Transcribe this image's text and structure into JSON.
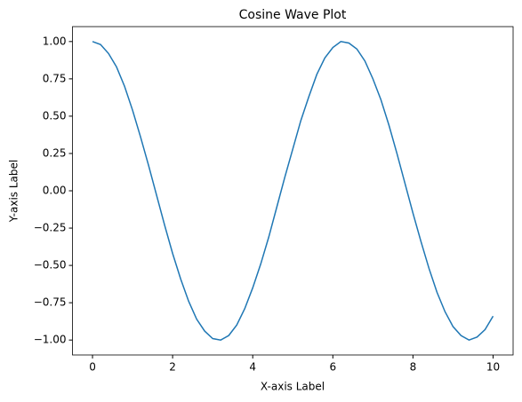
{
  "chart_data": {
    "type": "line",
    "title": "Cosine Wave Plot",
    "xlabel": "X-axis Label",
    "ylabel": "Y-axis Label",
    "x": [
      0,
      0.2,
      0.4,
      0.6,
      0.8,
      1.0,
      1.2,
      1.4,
      1.6,
      1.8,
      2.0,
      2.2,
      2.4,
      2.6,
      2.8,
      3.0,
      3.2,
      3.4,
      3.6,
      3.8,
      4.0,
      4.2,
      4.4,
      4.6,
      4.8,
      5.0,
      5.2,
      5.4,
      5.6,
      5.8,
      6.0,
      6.2,
      6.4,
      6.6,
      6.8,
      7.0,
      7.2,
      7.4,
      7.6,
      7.8,
      8.0,
      8.2,
      8.4,
      8.6,
      8.8,
      9.0,
      9.2,
      9.4,
      9.6,
      9.8,
      10.0
    ],
    "series": [
      {
        "color": "#1f77b4",
        "values": [
          1.0,
          0.98,
          0.92,
          0.83,
          0.7,
          0.54,
          0.36,
          0.17,
          -0.03,
          -0.23,
          -0.42,
          -0.59,
          -0.74,
          -0.86,
          -0.94,
          -0.99,
          -1.0,
          -0.97,
          -0.9,
          -0.79,
          -0.65,
          -0.49,
          -0.31,
          -0.11,
          0.09,
          0.28,
          0.47,
          0.63,
          0.78,
          0.89,
          0.96,
          1.0,
          0.99,
          0.95,
          0.87,
          0.75,
          0.61,
          0.44,
          0.25,
          0.05,
          -0.15,
          -0.34,
          -0.52,
          -0.68,
          -0.81,
          -0.91,
          -0.97,
          -1.0,
          -0.98,
          -0.93,
          -0.84
        ]
      }
    ],
    "xlim": [
      -0.5,
      10.5
    ],
    "xticks": [
      0,
      2,
      4,
      6,
      8,
      10
    ],
    "ylim": [
      -1.1,
      1.1
    ],
    "yticks": [
      {
        "value": -1,
        "label": "−1.00"
      },
      {
        "value": -0.75,
        "label": "−0.75"
      },
      {
        "value": -0.5,
        "label": "−0.50"
      },
      {
        "value": -0.25,
        "label": "−0.25"
      },
      {
        "value": 0,
        "label": "0.00"
      },
      {
        "value": 0.25,
        "label": "0.25"
      },
      {
        "value": 0.5,
        "label": "0.50"
      },
      {
        "value": 0.75,
        "label": "0.75"
      },
      {
        "value": 1,
        "label": "1.00"
      }
    ]
  }
}
